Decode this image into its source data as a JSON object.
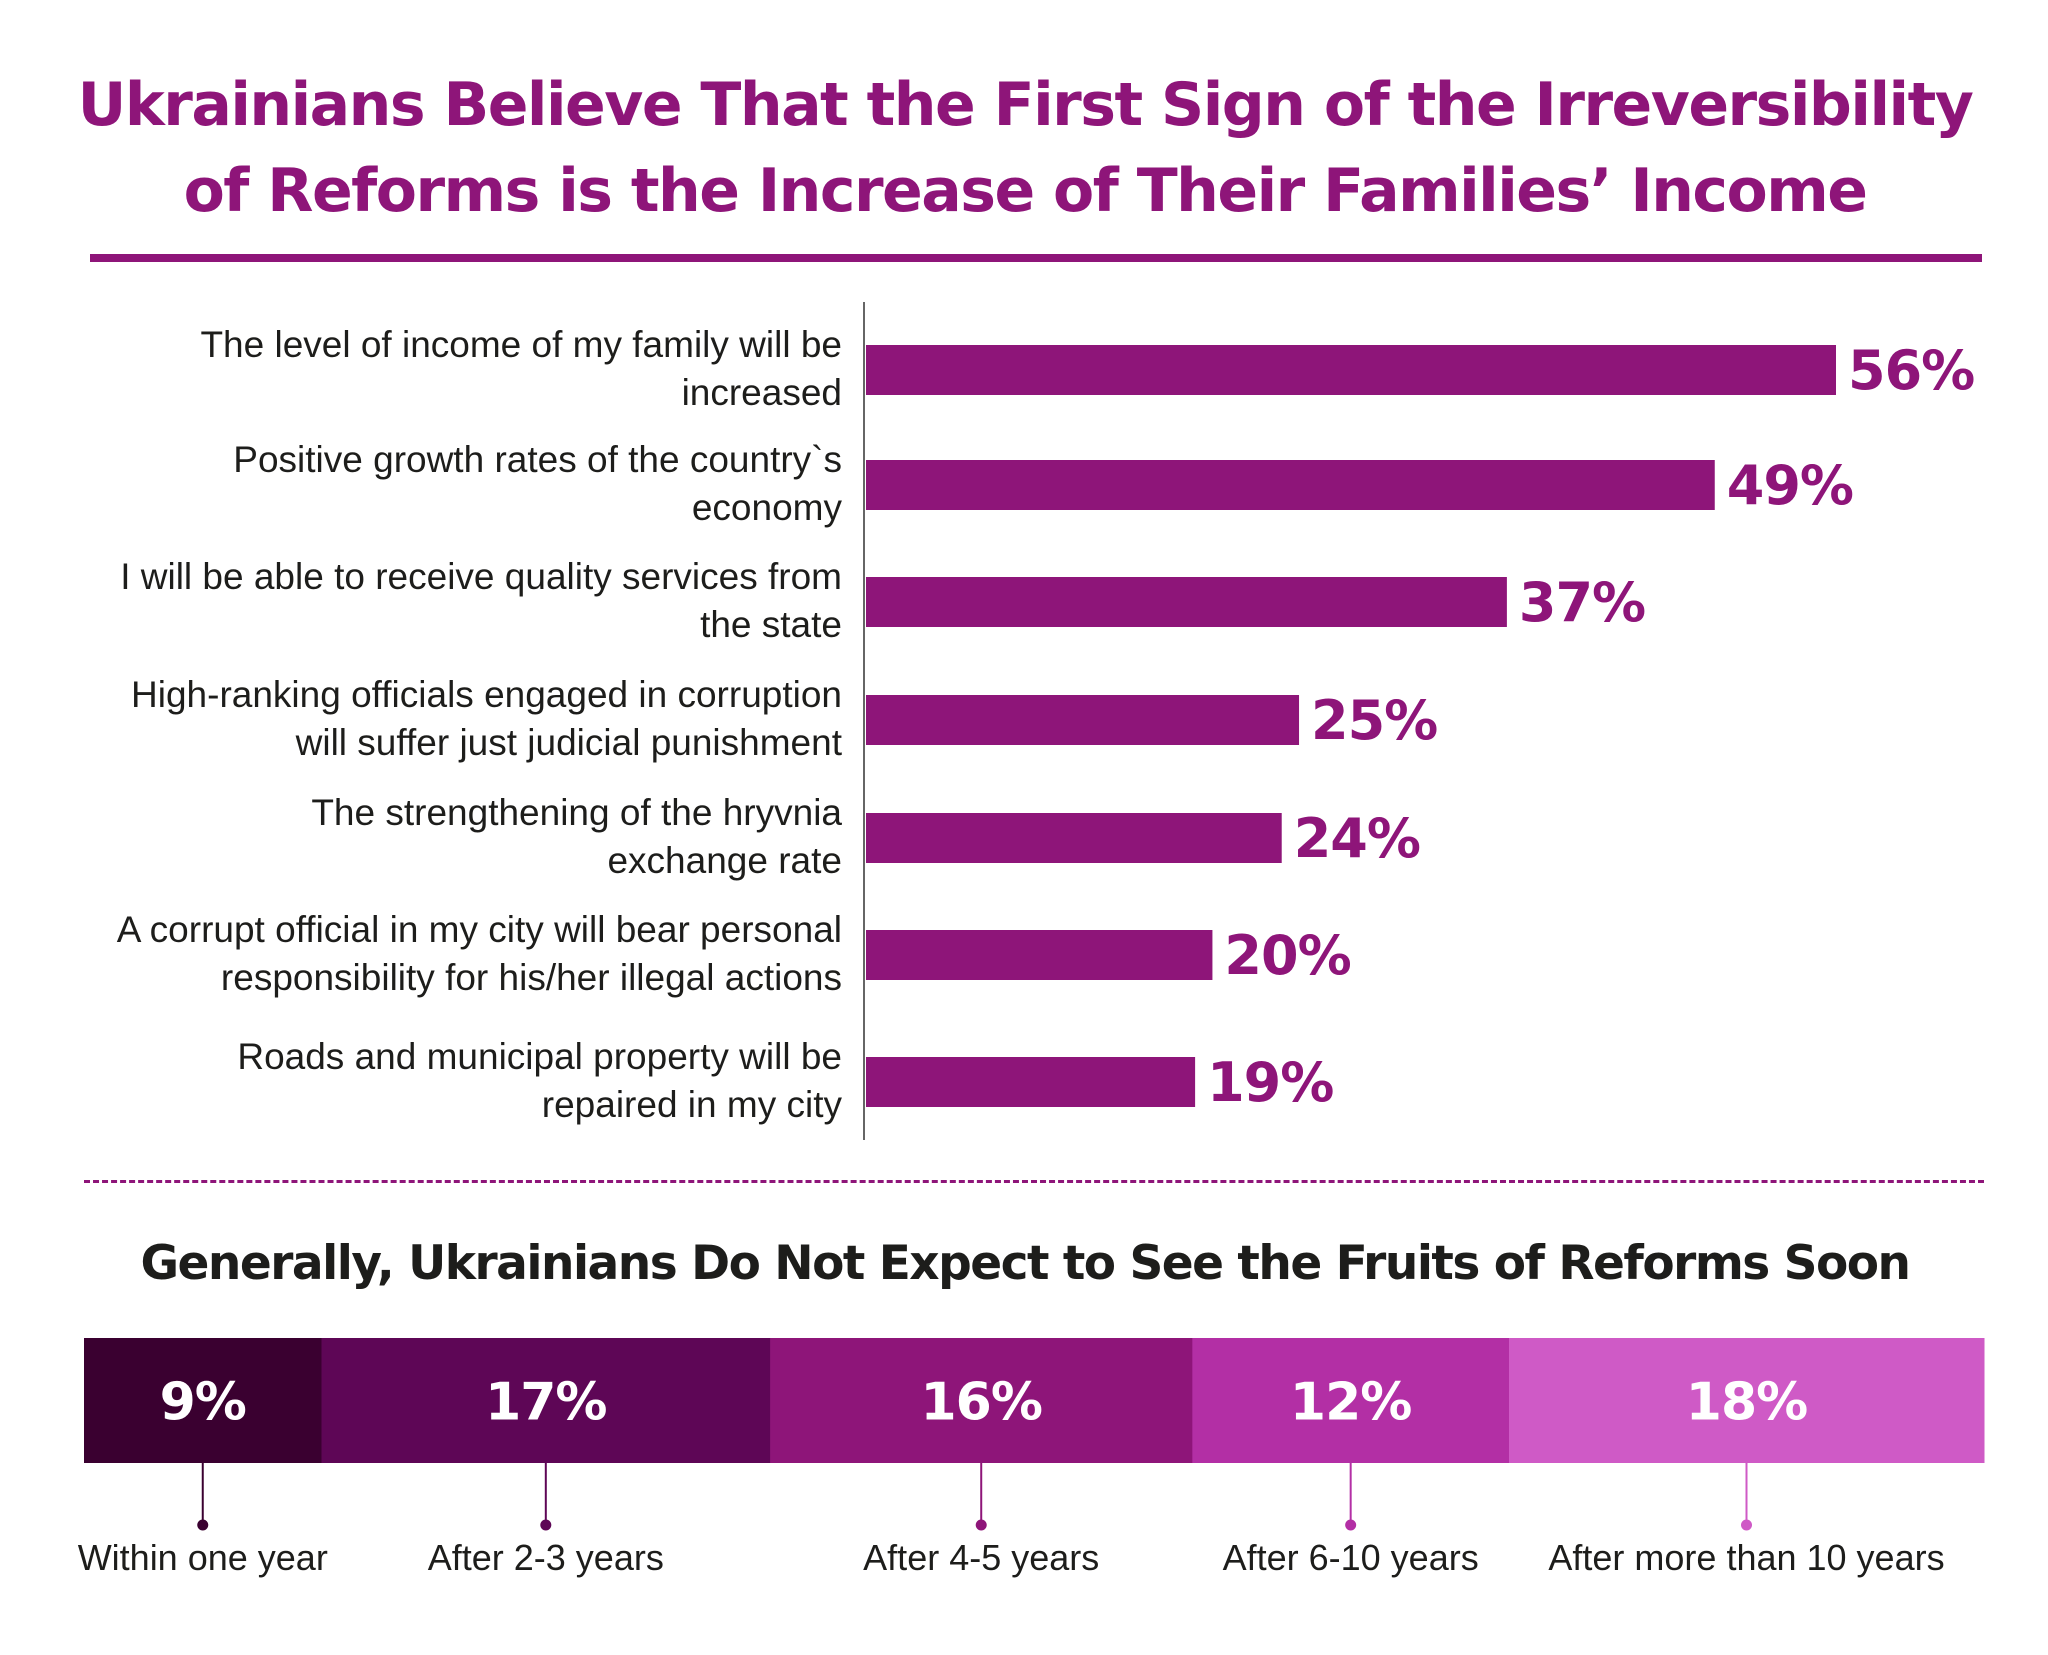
{
  "header": {
    "title_line1": "Ukrainians Believe That the First Sign of the Irreversibility",
    "title_line2": "of Reforms is the Increase of Their Families’ Income"
  },
  "colors": {
    "accent": "#8e1579",
    "text": "#1d1d1b",
    "segments": [
      "#3a0030",
      "#5e0656",
      "#8e1579",
      "#b32fa5",
      "#cf5ac6"
    ]
  },
  "chart_data": [
    {
      "type": "bar",
      "orientation": "horizontal",
      "title": "Ukrainians Believe That the First Sign of the Irreversibility of Reforms is the Increase of Their Families’ Income",
      "categories": [
        [
          "The level of income of my family will be",
          "increased"
        ],
        [
          "Positive growth rates of the country`s",
          "economy"
        ],
        [
          "I will be able to receive quality services from",
          "the state"
        ],
        [
          "High-ranking officials engaged in corruption",
          "will suffer just judicial punishment"
        ],
        [
          "The strengthening of the hryvnia",
          "exchange rate"
        ],
        [
          "A corrupt official in my city will bear personal",
          "responsibility for his/her illegal actions"
        ],
        [
          "Roads and municipal property will be",
          "repaired in my city"
        ]
      ],
      "values": [
        56,
        49,
        37,
        25,
        24,
        20,
        19
      ],
      "value_labels": [
        "56%",
        "49%",
        "37%",
        "25%",
        "24%",
        "20%",
        "19%"
      ],
      "unit": "%",
      "xlim": [
        0,
        56
      ],
      "grid": false,
      "legend": "none"
    },
    {
      "type": "bar",
      "orientation": "stacked-horizontal",
      "title": "Generally, Ukrainians Do Not Expect to See the Fruits of Reforms Soon",
      "categories": [
        "Within one year",
        "After 2-3 years",
        "After 4-5 years",
        "After 6-10 years",
        "After more than 10 years"
      ],
      "values": [
        9,
        17,
        16,
        12,
        18
      ],
      "value_labels": [
        "9%",
        "17%",
        "16%",
        "12%",
        "18%"
      ],
      "unit": "%",
      "grid": false,
      "legend": "labels-below"
    }
  ]
}
